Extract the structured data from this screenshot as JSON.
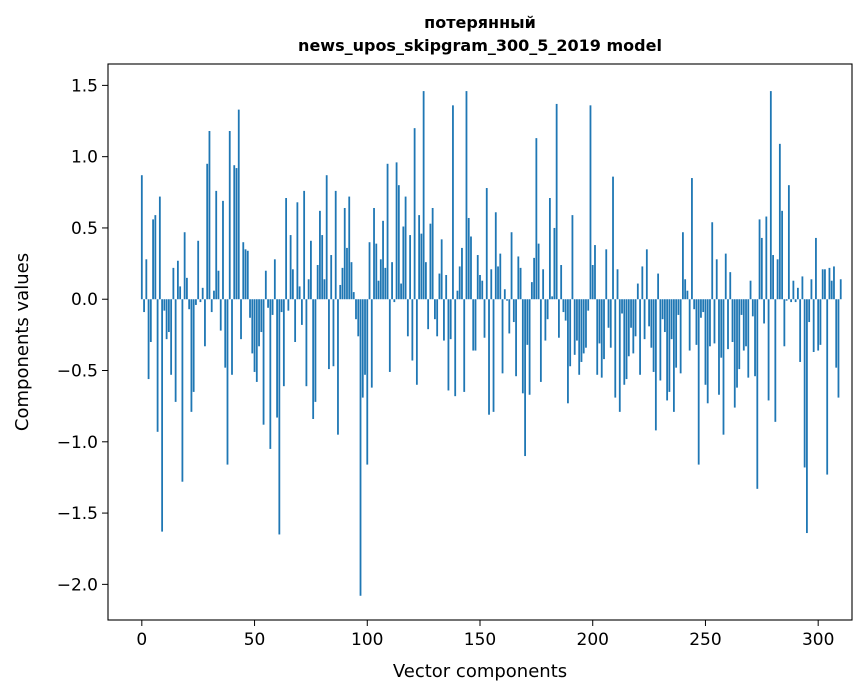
{
  "chart_data": {
    "type": "bar",
    "title": [
      "потерянный",
      "news_upos_skipgram_300_5_2019 model"
    ],
    "xlabel": "Vector components",
    "ylabel": "Components values",
    "xlim": [
      -15,
      315
    ],
    "ylim": [
      -2.25,
      1.65
    ],
    "xticks": [
      0,
      50,
      100,
      150,
      200,
      250,
      300
    ],
    "yticks": [
      1.5,
      1.0,
      0.5,
      0.0,
      -0.5,
      -1.0,
      -1.5,
      -2.0
    ],
    "ytick_labels": [
      "1.5",
      "1.0",
      "0.5",
      "0.0",
      "−0.5",
      "−1.0",
      "−1.5",
      "−2.0"
    ],
    "bar_color": "#1f77b4",
    "values": [
      0.87,
      -0.09,
      0.28,
      -0.56,
      -0.3,
      0.56,
      0.59,
      -0.93,
      0.72,
      -1.63,
      -0.08,
      -0.28,
      -0.23,
      -0.53,
      0.22,
      -0.72,
      0.27,
      0.09,
      -1.28,
      0.47,
      0.15,
      -0.07,
      -0.79,
      -0.65,
      -0.04,
      0.41,
      -0.02,
      0.08,
      -0.33,
      0.95,
      1.18,
      -0.09,
      0.06,
      0.76,
      0.2,
      -0.22,
      0.69,
      -0.48,
      -1.16,
      1.18,
      -0.53,
      0.94,
      0.92,
      1.33,
      -0.28,
      0.4,
      0.35,
      0.34,
      -0.13,
      -0.38,
      -0.51,
      -0.58,
      -0.33,
      -0.23,
      -0.88,
      0.2,
      -0.06,
      -1.05,
      -0.11,
      0.28,
      -0.83,
      -1.65,
      -0.09,
      -0.61,
      0.71,
      -0.08,
      0.45,
      0.21,
      -0.3,
      0.68,
      0.09,
      -0.18,
      0.76,
      -0.61,
      0.14,
      0.41,
      -0.84,
      -0.72,
      0.24,
      0.62,
      0.45,
      0.14,
      0.87,
      -0.49,
      0.31,
      -0.47,
      0.76,
      -0.95,
      0.1,
      0.22,
      0.64,
      0.36,
      0.72,
      0.26,
      0.05,
      -0.14,
      -0.26,
      -2.08,
      -0.69,
      -0.53,
      -1.16,
      0.4,
      -0.62,
      0.64,
      0.39,
      0.13,
      0.28,
      0.55,
      0.22,
      0.95,
      -0.51,
      0.26,
      -0.02,
      0.96,
      0.8,
      0.11,
      0.51,
      0.72,
      -0.26,
      0.45,
      -0.43,
      1.2,
      -0.6,
      0.59,
      0.46,
      1.46,
      0.26,
      -0.21,
      0.53,
      0.64,
      -0.14,
      -0.26,
      0.18,
      0.42,
      -0.29,
      0.17,
      -0.64,
      -0.28,
      1.36,
      -0.68,
      0.06,
      0.23,
      0.36,
      -0.65,
      1.46,
      0.57,
      0.44,
      -0.36,
      -0.36,
      0.31,
      0.17,
      0.13,
      -0.27,
      0.78,
      -0.81,
      0.21,
      -0.79,
      0.61,
      0.23,
      0.32,
      -0.52,
      0.07,
      -0.01,
      -0.24,
      0.47,
      -0.16,
      -0.54,
      0.3,
      0.22,
      -0.66,
      -1.1,
      -0.32,
      -0.67,
      0.12,
      0.29,
      1.13,
      0.39,
      -0.58,
      0.21,
      -0.29,
      -0.14,
      0.71,
      0.02,
      0.5,
      1.37,
      -0.27,
      0.24,
      -0.09,
      -0.15,
      -0.73,
      -0.47,
      0.59,
      -0.39,
      -0.29,
      -0.53,
      -0.44,
      -0.38,
      -0.34,
      -0.08,
      1.36,
      0.24,
      0.38,
      -0.53,
      -0.31,
      -0.55,
      -0.42,
      0.35,
      -0.2,
      -0.34,
      0.86,
      -0.69,
      0.21,
      -0.79,
      -0.1,
      -0.6,
      -0.56,
      -0.4,
      -0.2,
      -0.38,
      -0.26,
      0.11,
      -0.53,
      0.23,
      -0.28,
      0.35,
      -0.19,
      -0.34,
      -0.51,
      -0.92,
      0.18,
      -0.57,
      -0.14,
      -0.23,
      -0.71,
      -0.65,
      -0.28,
      -0.79,
      -0.48,
      -0.11,
      -0.52,
      0.47,
      0.14,
      0.06,
      -0.36,
      0.85,
      -0.07,
      -0.32,
      -1.16,
      -0.13,
      -0.09,
      -0.6,
      -0.73,
      -0.33,
      0.54,
      -0.31,
      0.28,
      -0.67,
      -0.41,
      -0.95,
      0.32,
      -0.35,
      0.19,
      -0.3,
      -0.76,
      -0.62,
      -0.49,
      -0.11,
      -0.36,
      -0.33,
      -0.55,
      0.13,
      -0.12,
      -0.54,
      -1.33,
      0.56,
      0.43,
      -0.17,
      0.58,
      -0.71,
      1.46,
      0.31,
      -0.86,
      0.28,
      1.09,
      0.62,
      -0.33,
      -0.01,
      0.8,
      -0.02,
      0.13,
      -0.02,
      0.08,
      -0.44,
      0.16,
      -1.18,
      -1.64,
      -0.16,
      0.14,
      -0.37,
      0.43,
      -0.36,
      -0.32,
      0.21,
      0.21,
      -1.23,
      0.22,
      0.13,
      0.23,
      -0.48,
      -0.69,
      0.14
    ]
  }
}
